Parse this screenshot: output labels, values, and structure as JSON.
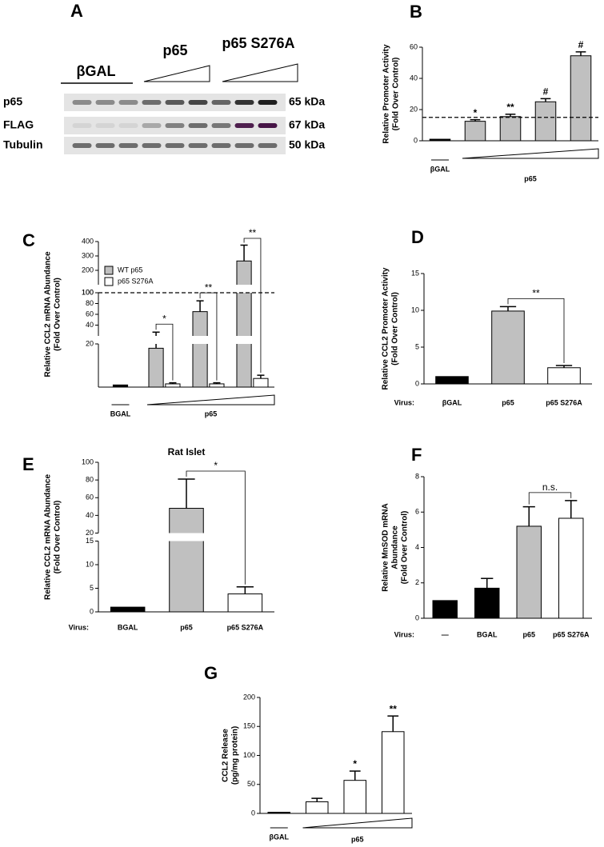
{
  "blot": {
    "panel_label": "A",
    "groups": [
      "βGAL",
      "p65",
      "p65 S276A"
    ],
    "rows": [
      {
        "label": "p65",
        "size": "65 kDa"
      },
      {
        "label": "FLAG",
        "size": "67 kDa"
      },
      {
        "label": "Tubulin",
        "size": "50 kDa"
      }
    ]
  },
  "chart_data": [
    {
      "type": "bar",
      "panel_label": "B",
      "ylabel": [
        "Relative Promoter Activity",
        "(Fold Over Control)"
      ],
      "categories": [
        "βGAL",
        null,
        null,
        null,
        null
      ],
      "x_group_label": "p65",
      "values": [
        1,
        12.5,
        15.5,
        25,
        54.5
      ],
      "errors": [
        null,
        1,
        1.5,
        2,
        2.5
      ],
      "colors": [
        "#000000",
        "#c0c0c0",
        "#c0c0c0",
        "#c0c0c0",
        "#c0c0c0"
      ],
      "annotations": [
        null,
        "*",
        "**",
        "#",
        "#"
      ],
      "reference_line": 15,
      "ylim": [
        0,
        60
      ],
      "yticks": [
        0,
        20,
        40,
        60
      ]
    },
    {
      "type": "bar",
      "panel_label": "C",
      "ylabel": [
        "Relative CCL2 mRNA Abundance",
        "(Fold Over Control)"
      ],
      "categories": [
        "BGAL",
        null,
        null,
        null
      ],
      "x_group_label": "p65",
      "values": [
        1,
        null,
        null,
        null
      ],
      "color": "#000000",
      "series": [
        {
          "name": "WT p65",
          "color": "#c0c0c0",
          "values": [
            null,
            18,
            65,
            265
          ],
          "errors": [
            null,
            9,
            20,
            110
          ]
        },
        {
          "name": "p65 S276A",
          "color": "#ffffff",
          "values": [
            null,
            1.5,
            1.5,
            4
          ],
          "errors": [
            null,
            0.5,
            0.5,
            1.5
          ]
        }
      ],
      "bracket_annotations": [
        null,
        "*",
        "**",
        "**"
      ],
      "reference_line": 100,
      "y_segments": [
        {
          "ylim": [
            0,
            20
          ],
          "yticks": []
        },
        {
          "ylim": [
            20,
            100
          ],
          "yticks": [
            20,
            40,
            60,
            80,
            100
          ]
        },
        {
          "ylim": [
            100,
            400
          ],
          "yticks": [
            100,
            200,
            300,
            400
          ]
        }
      ]
    },
    {
      "type": "bar",
      "panel_label": "D",
      "ylabel": [
        "Relative CCL2 Promoter Activity",
        "(Fold Over Control)"
      ],
      "x_prefix": "Virus:",
      "categories": [
        "βGAL",
        "p65",
        "p65 S276A"
      ],
      "values": [
        1,
        9.9,
        2.2
      ],
      "errors": [
        null,
        0.6,
        0.3
      ],
      "colors": [
        "#000000",
        "#c0c0c0",
        "#ffffff"
      ],
      "bracket_annotations": [
        null,
        null,
        "**"
      ],
      "ylim": [
        0,
        15
      ],
      "yticks": [
        0,
        5,
        10,
        15
      ]
    },
    {
      "type": "bar",
      "panel_label": "E",
      "title": "Rat Islet",
      "ylabel": [
        "Relative CCL2 mRNA Abundance",
        "(Fold Over Control)"
      ],
      "x_prefix": "Virus:",
      "categories": [
        "BGAL",
        "p65",
        "p65 S276A"
      ],
      "values": [
        1,
        48,
        3.8
      ],
      "errors": [
        null,
        33,
        1.5
      ],
      "colors": [
        "#000000",
        "#c0c0c0",
        "#ffffff"
      ],
      "bracket_annotations": [
        null,
        null,
        "*"
      ],
      "y_segments": [
        {
          "ylim": [
            0,
            15
          ],
          "yticks": [
            0,
            5,
            10,
            15
          ]
        },
        {
          "ylim": [
            20,
            100
          ],
          "yticks": [
            20,
            40,
            60,
            80,
            100
          ]
        }
      ]
    },
    {
      "type": "bar",
      "panel_label": "F",
      "ylabel": [
        "Relative MnSOD mRNA",
        "Abundance",
        "(Fold Over Control)"
      ],
      "x_prefix": "Virus:",
      "categories": [
        "—",
        "BGAL",
        "p65",
        "p65 S276A"
      ],
      "values": [
        1,
        1.7,
        5.2,
        5.65
      ],
      "errors": [
        null,
        0.55,
        1.1,
        1.0
      ],
      "colors": [
        "#000000",
        "#000000",
        "#c0c0c0",
        "#ffffff"
      ],
      "bracket_annotations": [
        null,
        null,
        null,
        "n.s."
      ],
      "ylim": [
        0,
        8
      ],
      "yticks": [
        0,
        2,
        4,
        6,
        8
      ]
    },
    {
      "type": "bar",
      "panel_label": "G",
      "ylabel": [
        "CCL2 Release",
        "(pg/mg protein)"
      ],
      "categories": [
        "βGAL",
        null,
        null,
        null
      ],
      "x_group_label": "p65",
      "values": [
        2,
        20,
        57,
        141
      ],
      "errors": [
        null,
        6,
        16,
        27
      ],
      "colors": [
        "#000000",
        "#ffffff",
        "#ffffff",
        "#ffffff"
      ],
      "annotations": [
        null,
        null,
        "*",
        "**"
      ],
      "ylim": [
        0,
        200
      ],
      "yticks": [
        0,
        50,
        100,
        150,
        200
      ]
    }
  ]
}
